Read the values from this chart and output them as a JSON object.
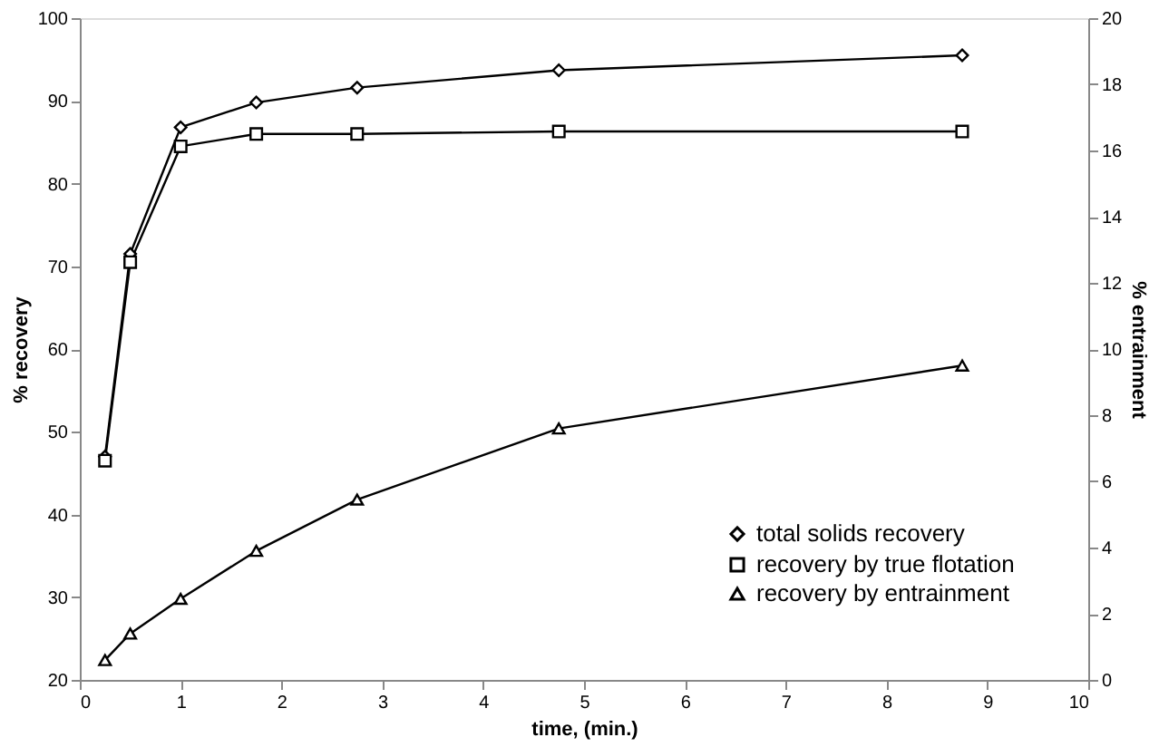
{
  "chart_data": {
    "type": "line",
    "xlabel": "time, (min.)",
    "ylabel": "% recovery",
    "y2label": "% entrainment",
    "x": [
      0.25,
      0.5,
      1,
      1.75,
      2.75,
      4.75,
      8.75
    ],
    "series": [
      {
        "name": "total solids recovery",
        "color": "#000000",
        "marker": "diamond",
        "values": [
          47,
          71.5,
          86.8,
          89.8,
          91.6,
          93.7,
          95.5
        ]
      },
      {
        "name": "recovery by true flotation",
        "color": "#000000",
        "marker": "square",
        "values": [
          46.5,
          70.5,
          84.5,
          86,
          86,
          86.3,
          86.3
        ]
      },
      {
        "name": "recovery by entrainment",
        "color": "#000000",
        "marker": "triangle",
        "axis": "y2",
        "values": [
          0.6,
          1.4,
          2.45,
          3.9,
          5.45,
          7.6,
          9.5
        ]
      }
    ],
    "xlim": [
      0,
      10
    ],
    "xticks": [
      0,
      1,
      2,
      3,
      4,
      5,
      6,
      7,
      8,
      9,
      10
    ],
    "ylim": [
      20,
      100
    ],
    "yticks": [
      20,
      30,
      40,
      50,
      60,
      70,
      80,
      90,
      100
    ],
    "y2lim": [
      0,
      20
    ],
    "y2ticks": [
      0,
      2,
      4,
      6,
      8,
      10,
      12,
      14,
      16,
      18,
      20
    ],
    "grid": false,
    "legend": "bottom right",
    "line_style": "solid"
  }
}
